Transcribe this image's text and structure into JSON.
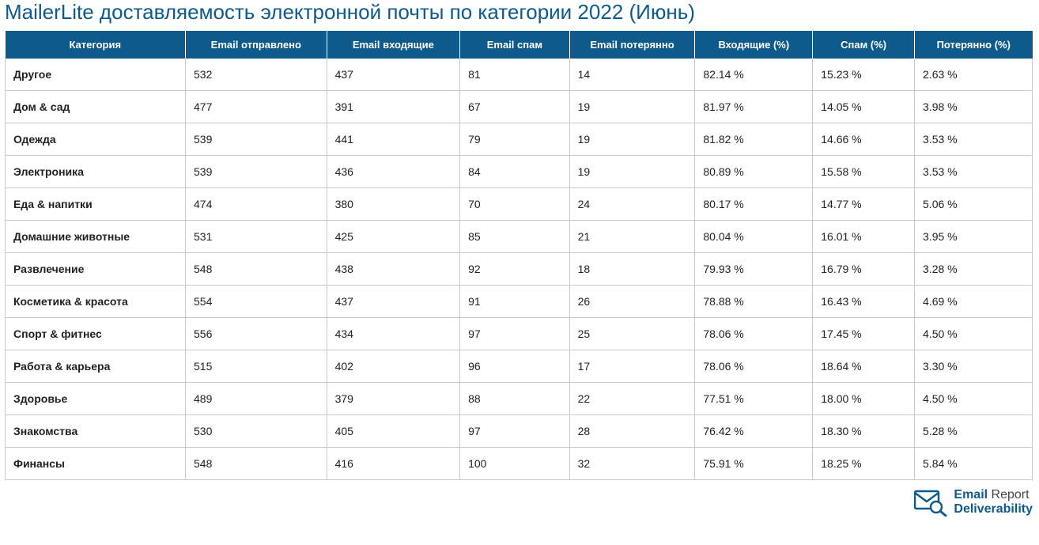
{
  "title": "MailerLite доставляемость электронной почты по категории 2022 (Июнь)",
  "colors": {
    "header_bg": "#0e5a8a",
    "header_text": "#ffffff",
    "title_color": "#0e5a8a",
    "row_border": "#c9c9c9",
    "body_bg": "#ffffff"
  },
  "table": {
    "columns": [
      "Категория",
      "Email отправлено",
      "Email входящие",
      "Email спам",
      "Email потерянно",
      "Входящие (%)",
      "Спам (%)",
      "Потерянно (%)"
    ],
    "rows": [
      [
        "Другое",
        "532",
        "437",
        "81",
        "14",
        "82.14 %",
        "15.23 %",
        "2.63 %"
      ],
      [
        "Дом & сад",
        "477",
        "391",
        "67",
        "19",
        "81.97 %",
        "14.05 %",
        "3.98 %"
      ],
      [
        "Одежда",
        "539",
        "441",
        "79",
        "19",
        "81.82 %",
        "14.66 %",
        "3.53 %"
      ],
      [
        "Электроника",
        "539",
        "436",
        "84",
        "19",
        "80.89 %",
        "15.58 %",
        "3.53 %"
      ],
      [
        "Еда & напитки",
        "474",
        "380",
        "70",
        "24",
        "80.17 %",
        "14.77 %",
        "5.06 %"
      ],
      [
        "Домашние животные",
        "531",
        "425",
        "85",
        "21",
        "80.04 %",
        "16.01 %",
        "3.95 %"
      ],
      [
        "Развлечение",
        "548",
        "438",
        "92",
        "18",
        "79.93 %",
        "16.79 %",
        "3.28 %"
      ],
      [
        "Косметика & красота",
        "554",
        "437",
        "91",
        "26",
        "78.88 %",
        "16.43 %",
        "4.69 %"
      ],
      [
        "Спорт & фитнес",
        "556",
        "434",
        "97",
        "25",
        "78.06 %",
        "17.45 %",
        "4.50 %"
      ],
      [
        "Работа & карьера",
        "515",
        "402",
        "96",
        "17",
        "78.06 %",
        "18.64 %",
        "3.30 %"
      ],
      [
        "Здоровье",
        "489",
        "379",
        "88",
        "22",
        "77.51 %",
        "18.00 %",
        "4.50 %"
      ],
      [
        "Знакомства",
        "530",
        "405",
        "97",
        "28",
        "76.42 %",
        "18.30 %",
        "5.28 %"
      ],
      [
        "Финансы",
        "548",
        "416",
        "100",
        "32",
        "75.91 %",
        "18.25 %",
        "5.84 %"
      ]
    ]
  },
  "footer": {
    "brand_bold": "Email",
    "brand_rest": " Report",
    "subtitle": "Deliverability",
    "icon_color": "#0e5a8a"
  }
}
